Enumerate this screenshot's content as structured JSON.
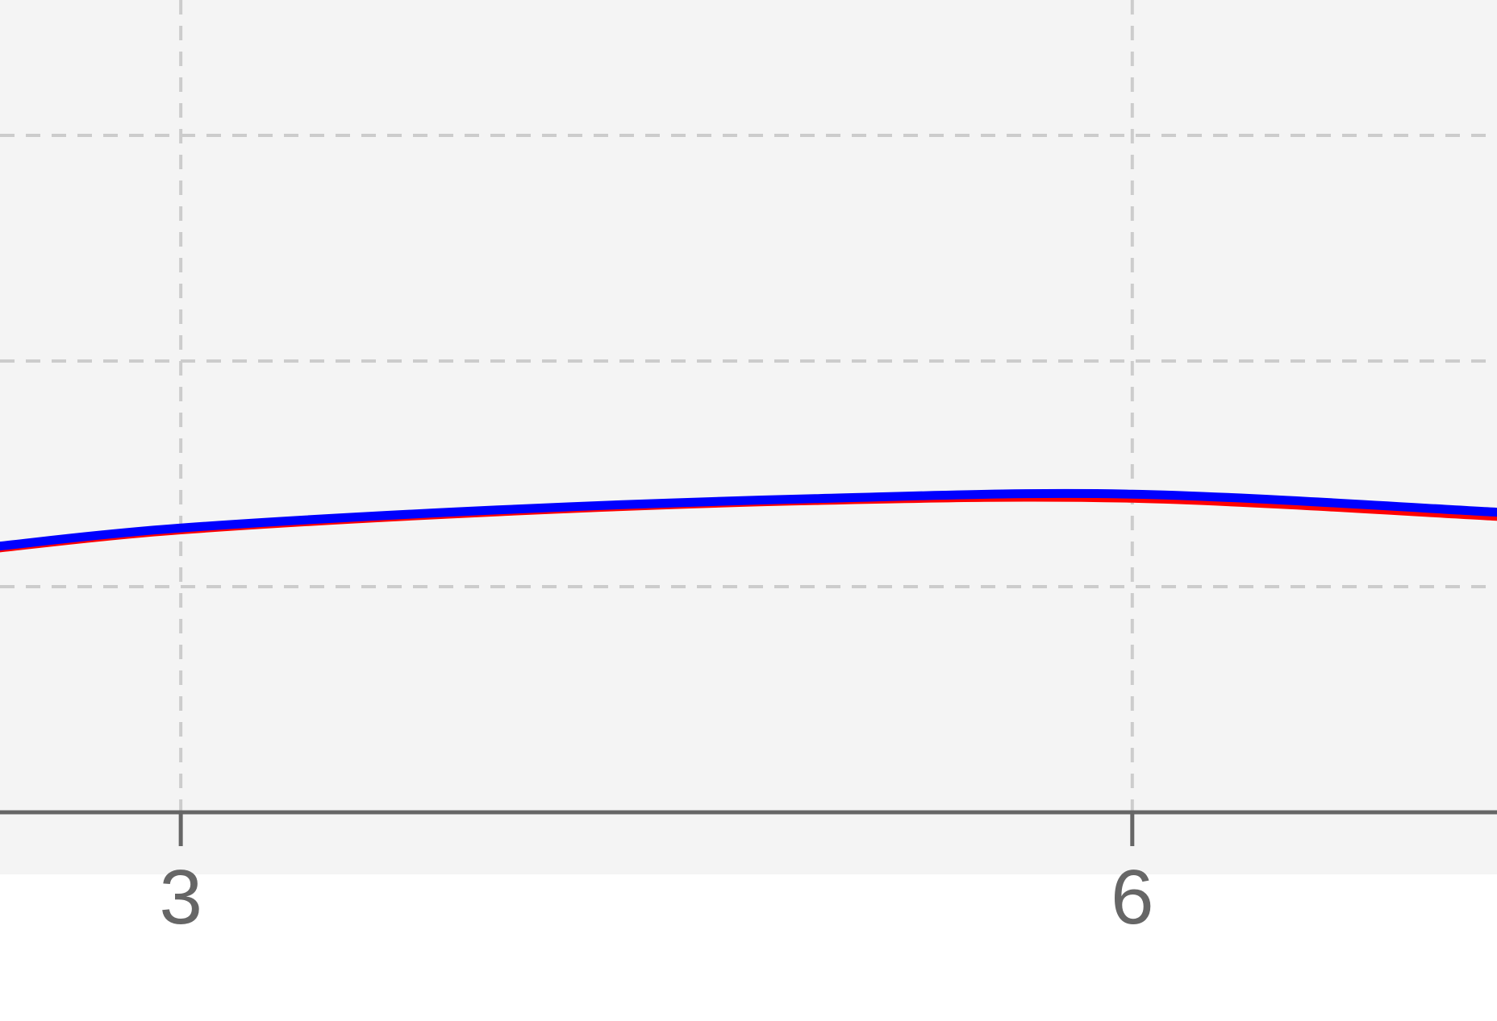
{
  "chart_data": {
    "type": "line",
    "title": "",
    "xlabel": "",
    "ylabel": "",
    "x_ticks": [
      {
        "value": 3,
        "label": "3"
      },
      {
        "value": 6,
        "label": "6"
      }
    ],
    "xlim": [
      2.43,
      7.15
    ],
    "ylim": [
      0,
      3.6
    ],
    "y_gridlines": [
      1,
      2,
      3
    ],
    "grid": true,
    "series": [
      {
        "color": "#ff0000",
        "x": [
          2.43,
          3.0,
          4.0,
          5.0,
          6.0,
          7.15
        ],
        "y": [
          1.17,
          1.25,
          1.33,
          1.38,
          1.39,
          1.31
        ]
      },
      {
        "color": "#0000ff",
        "x": [
          2.43,
          3.0,
          4.0,
          5.0,
          6.0,
          7.15
        ],
        "y": [
          1.18,
          1.26,
          1.34,
          1.39,
          1.41,
          1.33
        ]
      }
    ],
    "colors": {
      "plot_background": "#f4f4f4",
      "grid": "#cccccc",
      "axis": "#666666"
    }
  }
}
